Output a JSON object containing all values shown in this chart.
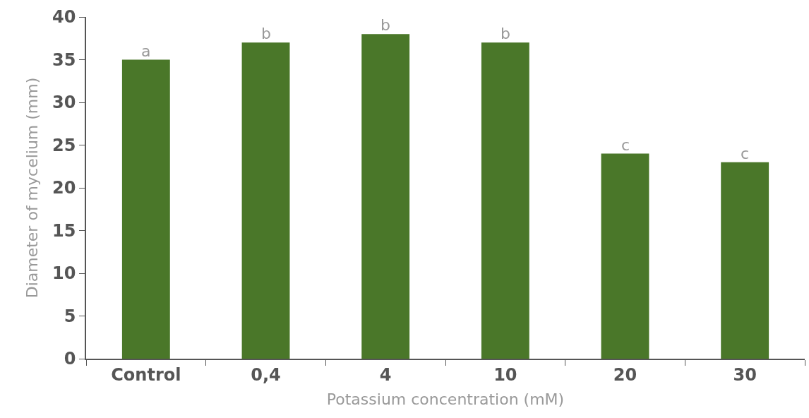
{
  "chart_data": {
    "type": "bar",
    "xlabel": "Potassium concentration (mM)",
    "ylabel": "Diameter of mycelium (mm)",
    "categories": [
      "Control",
      "0,4",
      "4",
      "10",
      "20",
      "30"
    ],
    "values": [
      35,
      37,
      38,
      37,
      24,
      23
    ],
    "color": "#4a7729",
    "ylim": [
      0,
      40
    ],
    "yticks": [
      0,
      5,
      10,
      15,
      20,
      25,
      30,
      35,
      40
    ],
    "grid": false,
    "annotations": [
      {
        "text": "a",
        "x": "Control",
        "y": 35
      },
      {
        "text": "b",
        "x": "0,4",
        "y": 37
      },
      {
        "text": "b",
        "x": "4",
        "y": 38
      },
      {
        "text": "b",
        "x": "10",
        "y": 37
      },
      {
        "text": "c",
        "x": "20",
        "y": 24
      },
      {
        "text": "c",
        "x": "30",
        "y": 23
      }
    ]
  }
}
